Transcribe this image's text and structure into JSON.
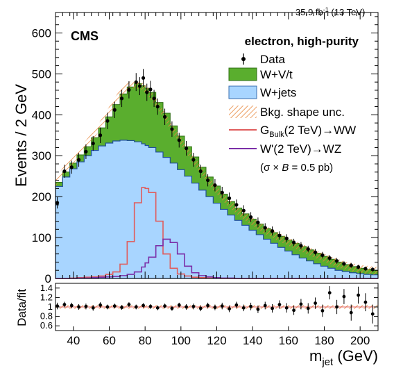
{
  "chart_data": [
    {
      "type": "bar",
      "panel": "main",
      "lumi_label": "35.9 fb",
      "lumi_exp": "-1",
      "lumi_energy": "(13 TeV)",
      "experiment_label": "CMS",
      "category_label": "electron, high-purity",
      "xlabel_main": "m",
      "xlabel_sub": "jet",
      "xlabel_unit": "(GeV)",
      "ylabel": "Events / 2 GeV",
      "xlim": [
        30,
        210
      ],
      "ylim": [
        0,
        650
      ],
      "yscale": "linear",
      "grid": false,
      "legend_position": "top-right",
      "x_ticks": [
        40,
        60,
        80,
        100,
        120,
        140,
        160,
        180,
        200
      ],
      "y_ticks": [
        0,
        100,
        200,
        300,
        400,
        500,
        600
      ],
      "legend": {
        "data": "Data",
        "wvt": "W+V/t",
        "wjets": "W+jets",
        "unc": "Bkg. shape unc.",
        "gbulk_main": "G",
        "gbulk_sub": "Bulk",
        "gbulk_rest": "(2 TeV)→WW",
        "wprime": "W'(2 TeV)→WZ",
        "xsec_note_pre": "(σ ×",
        "xsec_note_b": "B",
        "xsec_note_post": "= 0.5 pb)"
      },
      "colors": {
        "wvt": "#5aae2e",
        "wjets": "#a8d5ff",
        "unc": "#e8863a",
        "gbulk": "#e05c5c",
        "wprime": "#7b2fa8",
        "data": "#000000"
      },
      "x": [
        30,
        34,
        38,
        42,
        46,
        50,
        54,
        58,
        62,
        66,
        70,
        74,
        78,
        80,
        82,
        86,
        90,
        94,
        98,
        102,
        106,
        110,
        114,
        118,
        122,
        126,
        130,
        134,
        138,
        142,
        146,
        150,
        154,
        158,
        162,
        166,
        170,
        174,
        178,
        182,
        186,
        190,
        194,
        198,
        202,
        206,
        210
      ],
      "series": [
        {
          "name": "W+jets",
          "component": "background",
          "values": [
            225,
            248,
            268,
            285,
            300,
            313,
            324,
            331,
            336,
            338,
            337,
            334,
            329,
            325,
            320,
            309,
            296,
            282,
            266,
            250,
            233,
            216,
            200,
            184,
            169,
            155,
            142,
            130,
            118,
            107,
            96,
            86,
            76,
            67,
            58,
            50,
            43,
            36,
            30,
            25,
            20,
            17,
            14,
            12,
            10,
            9,
            8
          ]
        },
        {
          "name": "W+V/t",
          "component": "stacked total (W+jets + W+V/t)",
          "values": [
            235,
            260,
            282,
            302,
            322,
            344,
            368,
            395,
            425,
            451,
            468,
            476,
            471,
            465,
            455,
            430,
            404,
            373,
            348,
            322,
            297,
            272,
            248,
            226,
            206,
            188,
            172,
            158,
            145,
            133,
            122,
            112,
            103,
            94,
            86,
            78,
            70,
            62,
            54,
            47,
            40,
            34,
            29,
            25,
            22,
            20,
            18
          ]
        },
        {
          "name": "G_Bulk(2 TeV)→WW",
          "component": "signal",
          "values": [
            0,
            0,
            1,
            2,
            3,
            4,
            6,
            10,
            16,
            35,
            90,
            185,
            222,
            220,
            210,
            140,
            60,
            25,
            11,
            6,
            3,
            2,
            1,
            1,
            0,
            0,
            0,
            0,
            0,
            0,
            0,
            0,
            0,
            0,
            0,
            0,
            0,
            0,
            0,
            0,
            0,
            0,
            0,
            0,
            0,
            0,
            0
          ]
        },
        {
          "name": "W'(2 TeV)→WZ",
          "component": "signal",
          "values": [
            0,
            0,
            0,
            1,
            1,
            2,
            3,
            4,
            5,
            7,
            10,
            16,
            28,
            38,
            52,
            80,
            96,
            88,
            60,
            30,
            14,
            7,
            4,
            2,
            1,
            1,
            0,
            0,
            0,
            0,
            0,
            0,
            0,
            0,
            0,
            0,
            0,
            0,
            0,
            0,
            0,
            0,
            0,
            0,
            0,
            0,
            0
          ]
        }
      ],
      "data_points": {
        "name": "Data",
        "x": [
          31,
          35,
          39,
          43,
          47,
          51,
          55,
          59,
          63,
          67,
          71,
          75,
          77,
          79,
          81,
          83,
          85,
          87,
          91,
          95,
          99,
          103,
          107,
          111,
          115,
          119,
          123,
          127,
          131,
          135,
          139,
          143,
          147,
          151,
          155,
          159,
          163,
          167,
          171,
          175,
          179,
          183,
          187,
          191,
          195,
          199,
          203,
          207
        ],
        "y": [
          185,
          262,
          272,
          290,
          310,
          330,
          350,
          385,
          412,
          440,
          461,
          480,
          470,
          490,
          455,
          462,
          440,
          420,
          395,
          365,
          338,
          318,
          290,
          262,
          240,
          228,
          210,
          196,
          180,
          166,
          150,
          137,
          124,
          116,
          105,
          98,
          88,
          80,
          72,
          64,
          57,
          50,
          43,
          36,
          32,
          28,
          24,
          22
        ],
        "err": [
          14,
          16,
          16,
          17,
          18,
          18,
          19,
          20,
          20,
          21,
          21,
          22,
          22,
          22,
          21,
          21,
          21,
          20,
          20,
          19,
          18,
          18,
          17,
          16,
          15,
          15,
          14,
          14,
          13,
          13,
          12,
          12,
          11,
          11,
          10,
          10,
          9,
          9,
          8,
          8,
          8,
          7,
          7,
          6,
          6,
          5,
          5,
          5
        ]
      }
    },
    {
      "type": "scatter",
      "panel": "ratio",
      "ylabel": "Data/fit",
      "xlim": [
        30,
        210
      ],
      "ylim": [
        0.5,
        1.5
      ],
      "y_tick_labels": [
        "0.6",
        "0.8",
        "1",
        "1.2",
        "1.4"
      ],
      "y_ticks": [
        0.6,
        0.8,
        1.0,
        1.2,
        1.4
      ],
      "x": [
        31,
        35,
        39,
        43,
        47,
        51,
        55,
        59,
        63,
        67,
        71,
        75,
        79,
        83,
        87,
        91,
        95,
        99,
        103,
        107,
        111,
        115,
        119,
        123,
        127,
        131,
        135,
        139,
        143,
        147,
        151,
        155,
        159,
        163,
        167,
        171,
        175,
        179,
        183,
        187,
        191,
        195,
        199,
        203,
        207
      ],
      "y": [
        1.02,
        1.05,
        1.03,
        1.0,
        1.01,
        0.98,
        1.04,
        1.0,
        1.02,
        0.99,
        1.05,
        1.0,
        1.03,
        1.01,
        0.98,
        1.02,
        0.97,
        1.04,
        1.0,
        1.01,
        0.97,
        1.03,
        0.99,
        1.02,
        0.96,
        1.04,
        0.98,
        1.01,
        0.95,
        1.03,
        0.97,
        1.05,
        0.98,
        0.93,
        1.06,
        0.97,
        1.08,
        0.92,
        1.3,
        1.0,
        1.22,
        0.88,
        1.25,
        1.1,
        0.85
      ],
      "err": [
        0.07,
        0.06,
        0.06,
        0.06,
        0.06,
        0.06,
        0.06,
        0.05,
        0.05,
        0.05,
        0.05,
        0.05,
        0.05,
        0.05,
        0.05,
        0.05,
        0.05,
        0.05,
        0.06,
        0.06,
        0.06,
        0.06,
        0.06,
        0.07,
        0.07,
        0.07,
        0.07,
        0.08,
        0.08,
        0.08,
        0.09,
        0.09,
        0.1,
        0.1,
        0.11,
        0.11,
        0.12,
        0.13,
        0.14,
        0.15,
        0.16,
        0.17,
        0.18,
        0.19,
        0.2
      ],
      "unc_band": 0.04
    }
  ]
}
